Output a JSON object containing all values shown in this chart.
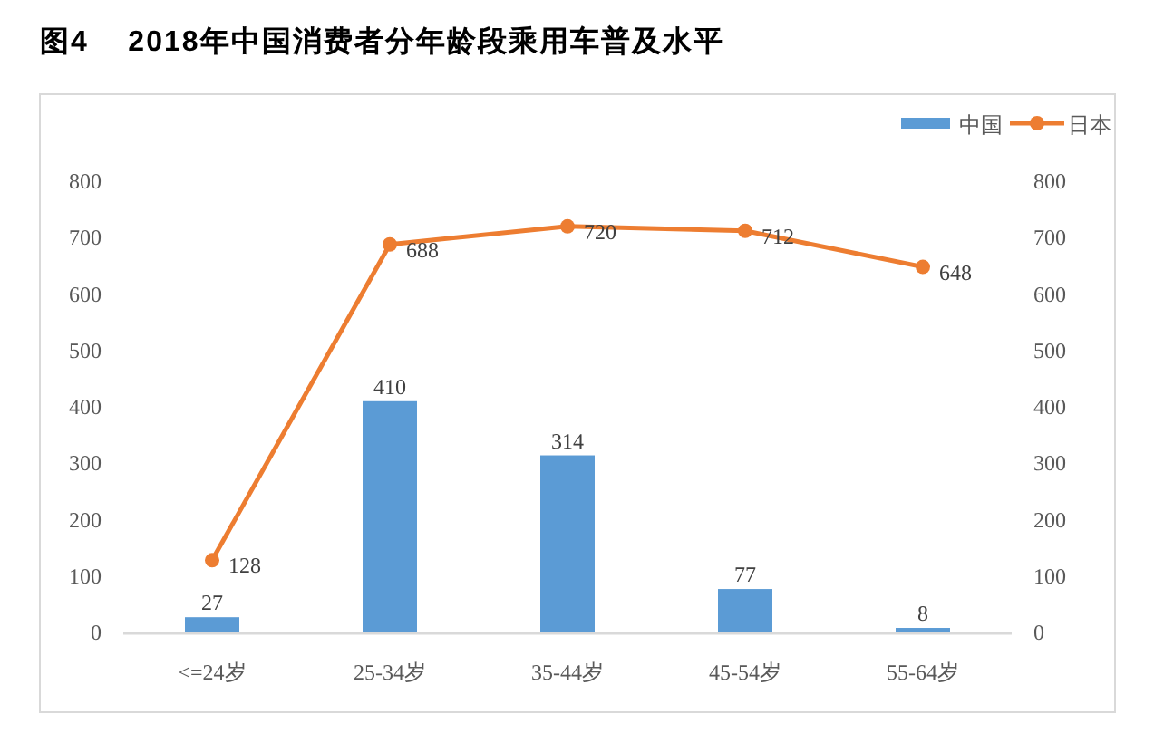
{
  "chart_data": {
    "type": "bar",
    "title": "图4    2018年中国消费者分年龄段乘用车普及水平",
    "categories": [
      "<=24岁",
      "25-34岁",
      "35-44岁",
      "45-54岁",
      "55-64岁"
    ],
    "series": [
      {
        "name": "中国",
        "color": "#5b9bd5",
        "values": [
          27,
          410,
          314,
          77,
          8
        ]
      },
      {
        "name": "日本",
        "type": "line",
        "color": "#ed7d31",
        "marker": "circle",
        "values": [
          128,
          688,
          720,
          712,
          648
        ]
      }
    ],
    "ylim": [
      0,
      800
    ],
    "yticks": [
      0,
      100,
      200,
      300,
      400,
      500,
      600,
      700,
      800
    ],
    "y2lim": [
      0,
      800
    ],
    "y2ticks": [
      0,
      100,
      200,
      300,
      400,
      500,
      600,
      700,
      800
    ],
    "data_labels": true,
    "legend": "top right"
  }
}
